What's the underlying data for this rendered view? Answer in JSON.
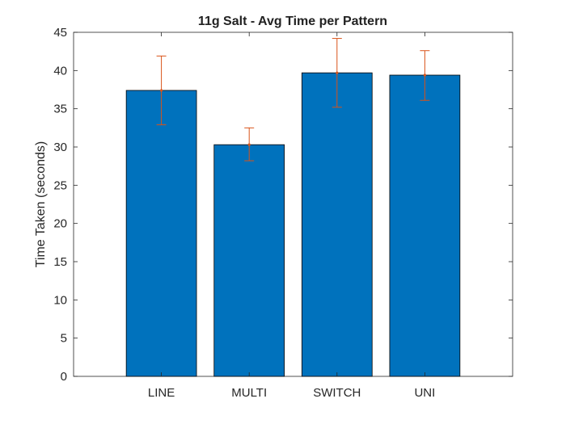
{
  "chart_data": {
    "type": "bar",
    "title": "11g Salt - Avg Time per Pattern",
    "xlabel": "",
    "ylabel": "Time Taken (seconds)",
    "categories": [
      "LINE",
      "MULTI",
      "SWITCH",
      "UNI"
    ],
    "values": [
      37.4,
      30.3,
      39.7,
      39.4
    ],
    "error_low": [
      32.9,
      28.2,
      35.2,
      36.1
    ],
    "error_high": [
      41.9,
      32.5,
      44.2,
      42.6
    ],
    "ylim": [
      0,
      45
    ],
    "yticks": [
      0,
      5,
      10,
      15,
      20,
      25,
      30,
      35,
      40,
      45
    ],
    "grid": false,
    "bar_color": "#0072BD",
    "error_color": "#D95319"
  }
}
